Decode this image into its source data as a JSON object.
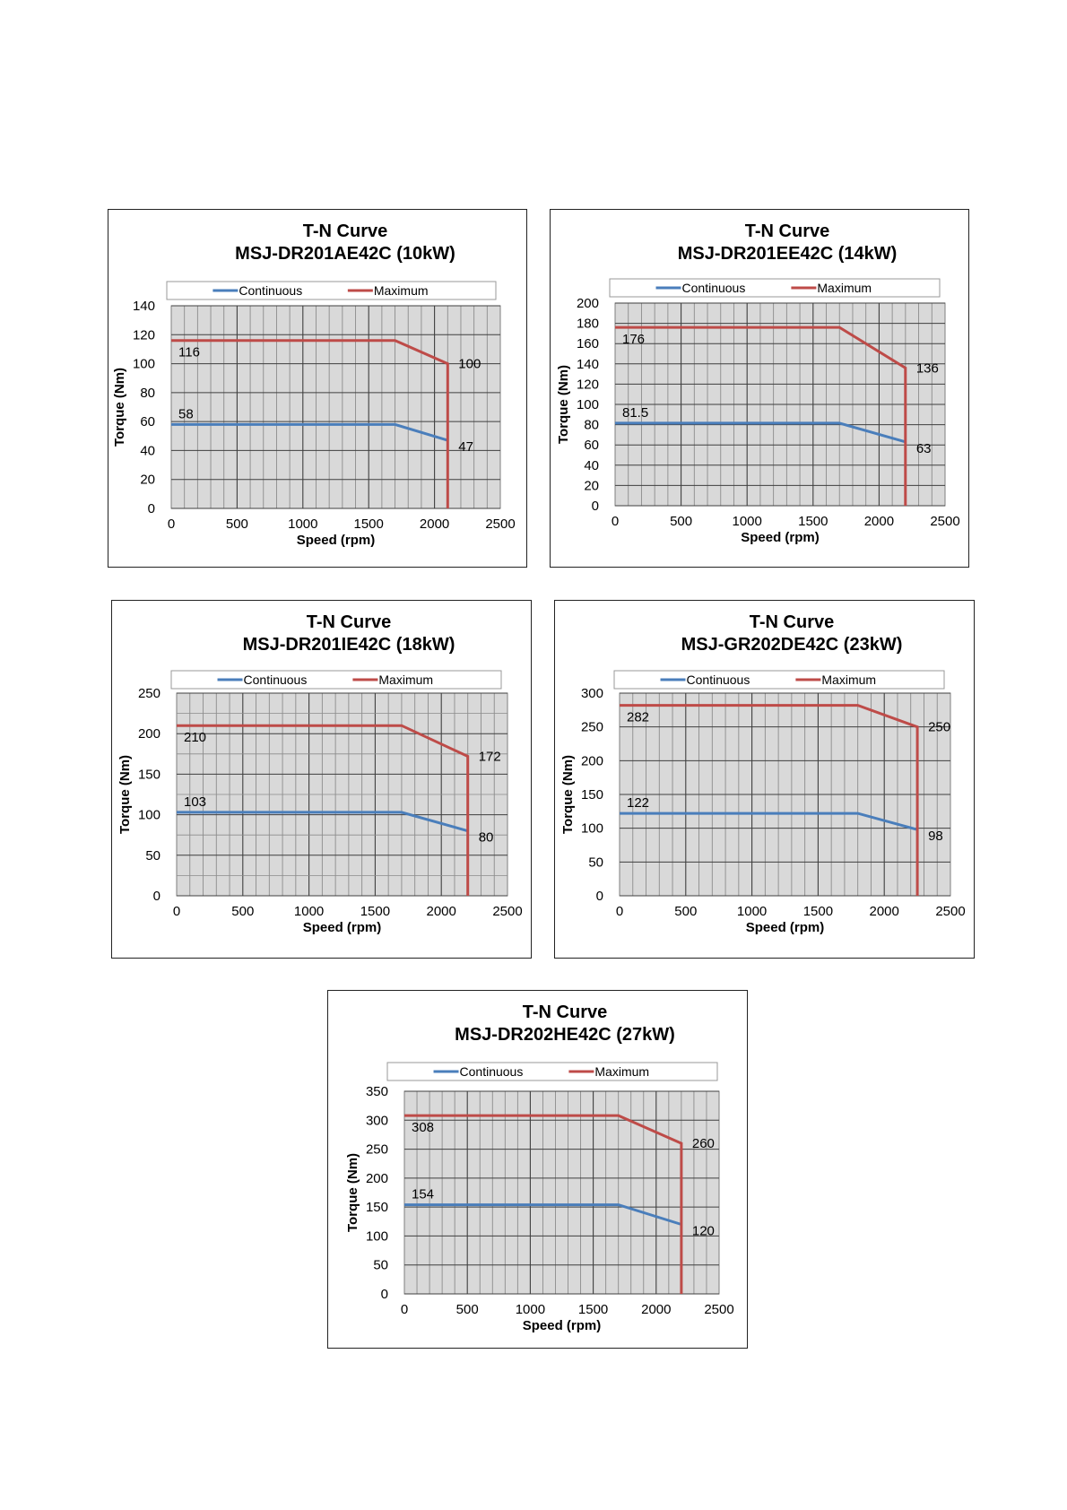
{
  "charts": [
    {
      "title": "T-N Curve",
      "subtitle": "MSJ-DR201AE42C  (10kW)",
      "ylabel": "Torque (Nm)",
      "xlabel": "Speed (rpm)",
      "legend": [
        "Continuous",
        "Maximum"
      ],
      "yticks": [
        "0",
        "20",
        "40",
        "60",
        "80",
        "100",
        "120",
        "140"
      ],
      "xticks": [
        "0",
        "500",
        "1000",
        "1500",
        "2000",
        "2500"
      ],
      "labels": [
        "116",
        "100",
        "58",
        "47"
      ]
    },
    {
      "title": "T-N Curve",
      "subtitle": "MSJ-DR201EE42C  (14kW)",
      "ylabel": "Torque (Nm)",
      "xlabel": "Speed (rpm)",
      "legend": [
        "Continuous",
        "Maximum"
      ],
      "yticks": [
        "0",
        "20",
        "40",
        "60",
        "80",
        "100",
        "120",
        "140",
        "160",
        "180",
        "200"
      ],
      "xticks": [
        "0",
        "500",
        "1000",
        "1500",
        "2000",
        "2500"
      ],
      "labels": [
        "176",
        "136",
        "81.5",
        "63"
      ]
    },
    {
      "title": "T-N Curve",
      "subtitle": "MSJ-DR201IE42C  (18kW)",
      "ylabel": "Torque (Nm)",
      "xlabel": "Speed (rpm)",
      "legend": [
        "Continuous",
        "Maximum"
      ],
      "yticks": [
        "0",
        "50",
        "100",
        "150",
        "200",
        "250"
      ],
      "xticks": [
        "0",
        "500",
        "1000",
        "1500",
        "2000",
        "2500"
      ],
      "labels": [
        "210",
        "172",
        "103",
        "80"
      ]
    },
    {
      "title": "T-N Curve",
      "subtitle": "MSJ-GR202DE42C  (23kW)",
      "ylabel": "Torque (Nm)",
      "xlabel": "Speed (rpm)",
      "legend": [
        "Continuous",
        "Maximum"
      ],
      "yticks": [
        "0",
        "50",
        "100",
        "150",
        "200",
        "250",
        "300"
      ],
      "xticks": [
        "0",
        "500",
        "1000",
        "1500",
        "2000",
        "2500"
      ],
      "labels": [
        "282",
        "250",
        "122",
        "98"
      ]
    },
    {
      "title": "T-N Curve",
      "subtitle": "MSJ-DR202HE42C  (27kW)",
      "ylabel": "Torque (Nm)",
      "xlabel": "Speed (rpm)",
      "legend": [
        "Continuous",
        "Maximum"
      ],
      "yticks": [
        "0",
        "50",
        "100",
        "150",
        "200",
        "250",
        "300",
        "350"
      ],
      "xticks": [
        "0",
        "500",
        "1000",
        "1500",
        "2000",
        "2500"
      ],
      "labels": [
        "308",
        "260",
        "154",
        "120"
      ]
    }
  ],
  "colors": {
    "continuous": "#4a7ebb",
    "maximum": "#be4b48",
    "plot_bg": "#d9d9d9"
  },
  "chart_data": [
    {
      "type": "line",
      "title": "T-N Curve",
      "subtitle": "MSJ-DR201AE42C  (10kW)",
      "xlabel": "Speed (rpm)",
      "ylabel": "Torque (Nm)",
      "xlim": [
        0,
        2500
      ],
      "ylim": [
        0,
        140
      ],
      "legend_position": "top",
      "grid": true,
      "series": [
        {
          "name": "Continuous",
          "x": [
            0,
            1700,
            2100
          ],
          "y": [
            58,
            58,
            47
          ]
        },
        {
          "name": "Maximum",
          "x": [
            0,
            1700,
            2100,
            2100
          ],
          "y": [
            116,
            116,
            100,
            0
          ]
        }
      ],
      "annotations": [
        {
          "text": "116",
          "x": 0,
          "y": 116
        },
        {
          "text": "100",
          "x": 2100,
          "y": 100
        },
        {
          "text": "58",
          "x": 0,
          "y": 58
        },
        {
          "text": "47",
          "x": 2100,
          "y": 47
        }
      ]
    },
    {
      "type": "line",
      "title": "T-N Curve",
      "subtitle": "MSJ-DR201EE42C  (14kW)",
      "xlabel": "Speed (rpm)",
      "ylabel": "Torque (Nm)",
      "xlim": [
        0,
        2500
      ],
      "ylim": [
        0,
        200
      ],
      "legend_position": "top",
      "grid": true,
      "series": [
        {
          "name": "Continuous",
          "x": [
            0,
            1700,
            2200
          ],
          "y": [
            81.5,
            81.5,
            63
          ]
        },
        {
          "name": "Maximum",
          "x": [
            0,
            1700,
            2200,
            2200
          ],
          "y": [
            176,
            176,
            136,
            0
          ]
        }
      ],
      "annotations": [
        {
          "text": "176",
          "x": 0,
          "y": 176
        },
        {
          "text": "136",
          "x": 2200,
          "y": 136
        },
        {
          "text": "81.5",
          "x": 0,
          "y": 81.5
        },
        {
          "text": "63",
          "x": 2200,
          "y": 63
        }
      ]
    },
    {
      "type": "line",
      "title": "T-N Curve",
      "subtitle": "MSJ-DR201IE42C  (18kW)",
      "xlabel": "Speed (rpm)",
      "ylabel": "Torque (Nm)",
      "xlim": [
        0,
        2500
      ],
      "ylim": [
        0,
        250
      ],
      "legend_position": "top",
      "grid": true,
      "series": [
        {
          "name": "Continuous",
          "x": [
            0,
            1700,
            2200
          ],
          "y": [
            103,
            103,
            80
          ]
        },
        {
          "name": "Maximum",
          "x": [
            0,
            1700,
            2200,
            2200
          ],
          "y": [
            210,
            210,
            172,
            0
          ]
        }
      ],
      "annotations": [
        {
          "text": "210",
          "x": 0,
          "y": 210
        },
        {
          "text": "172",
          "x": 2200,
          "y": 172
        },
        {
          "text": "103",
          "x": 0,
          "y": 103
        },
        {
          "text": "80",
          "x": 2200,
          "y": 80
        }
      ]
    },
    {
      "type": "line",
      "title": "T-N Curve",
      "subtitle": "MSJ-GR202DE42C  (23kW)",
      "xlabel": "Speed (rpm)",
      "ylabel": "Torque (Nm)",
      "xlim": [
        0,
        2500
      ],
      "ylim": [
        0,
        300
      ],
      "legend_position": "top",
      "grid": true,
      "series": [
        {
          "name": "Continuous",
          "x": [
            0,
            1800,
            2250
          ],
          "y": [
            122,
            122,
            98
          ]
        },
        {
          "name": "Maximum",
          "x": [
            0,
            1800,
            2250,
            2250
          ],
          "y": [
            282,
            282,
            250,
            0
          ]
        }
      ],
      "annotations": [
        {
          "text": "282",
          "x": 0,
          "y": 282
        },
        {
          "text": "250",
          "x": 2250,
          "y": 250
        },
        {
          "text": "122",
          "x": 0,
          "y": 122
        },
        {
          "text": "98",
          "x": 2250,
          "y": 98
        }
      ]
    },
    {
      "type": "line",
      "title": "T-N Curve",
      "subtitle": "MSJ-DR202HE42C  (27kW)",
      "xlabel": "Speed (rpm)",
      "ylabel": "Torque (Nm)",
      "xlim": [
        0,
        2500
      ],
      "ylim": [
        0,
        350
      ],
      "legend_position": "top",
      "grid": true,
      "series": [
        {
          "name": "Continuous",
          "x": [
            0,
            1700,
            2200
          ],
          "y": [
            154,
            154,
            120
          ]
        },
        {
          "name": "Maximum",
          "x": [
            0,
            1700,
            2200,
            2200
          ],
          "y": [
            308,
            308,
            260,
            0
          ]
        }
      ],
      "annotations": [
        {
          "text": "308",
          "x": 0,
          "y": 308
        },
        {
          "text": "260",
          "x": 2200,
          "y": 260
        },
        {
          "text": "154",
          "x": 0,
          "y": 154
        },
        {
          "text": "120",
          "x": 2200,
          "y": 120
        }
      ]
    }
  ]
}
